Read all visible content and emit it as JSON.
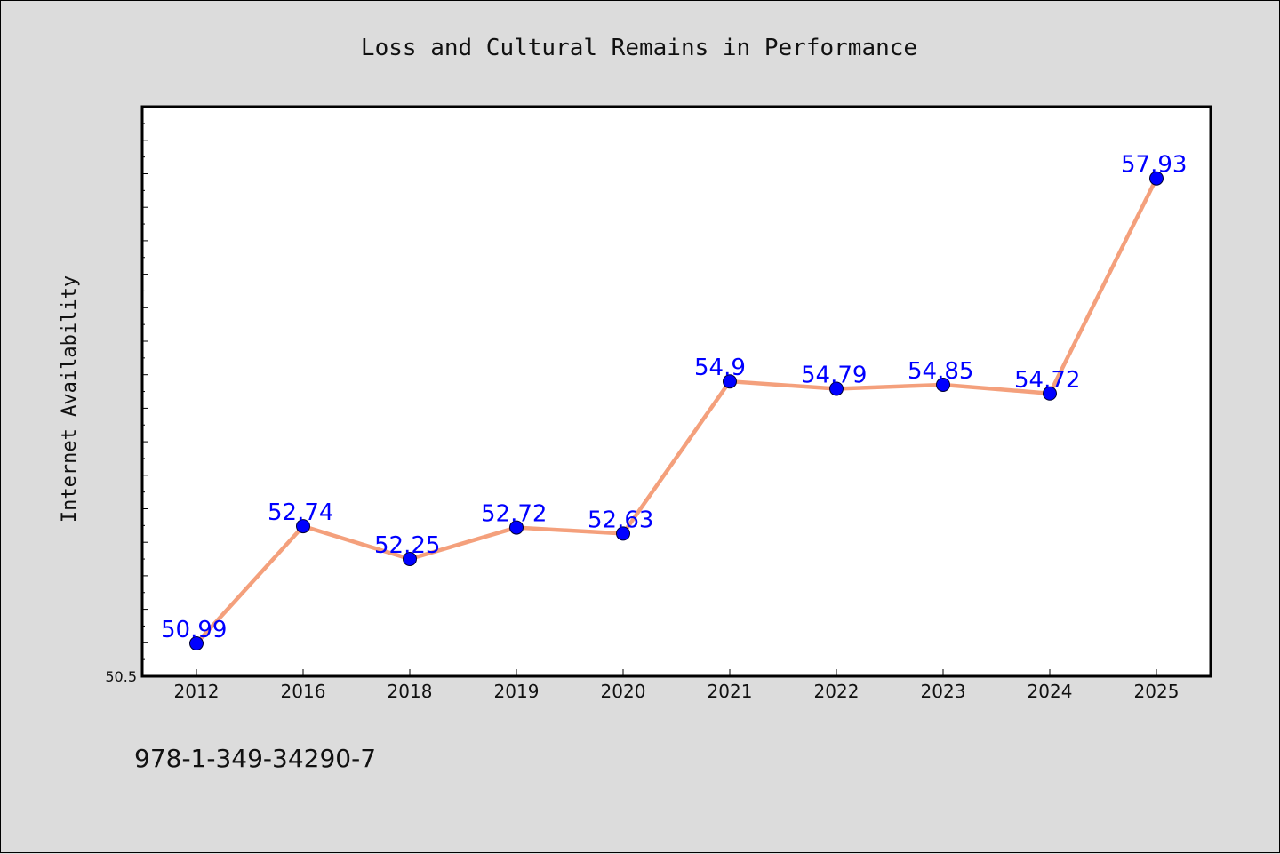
{
  "chart_data": {
    "type": "line",
    "title": "Loss and Cultural Remains in Performance",
    "xlabel": "",
    "ylabel": "Internet Availability",
    "categories": [
      "2012",
      "2016",
      "2018",
      "2019",
      "2020",
      "2021",
      "2022",
      "2023",
      "2024",
      "2025"
    ],
    "series": [
      {
        "values": [
          50.99,
          52.74,
          52.25,
          52.72,
          52.63,
          54.9,
          54.79,
          54.85,
          54.72,
          57.93
        ],
        "labels": [
          "50.99",
          "52.74",
          "52.25",
          "52.72",
          "52.63",
          "54.9",
          "54.79",
          "54.85",
          "54.72",
          "57.93"
        ],
        "line_color": "#f4a07c",
        "marker_color": "#0000ff",
        "label_color": "#0000ff"
      }
    ],
    "y_tick_labels": [
      "50.5"
    ],
    "ylim": [
      50.5,
      59.0
    ],
    "grid": false,
    "legend": "none"
  },
  "footer": {
    "isbn": "978-1-349-34290-7"
  },
  "colors": {
    "background": "#dcdcdc",
    "plot_background": "#ffffff"
  }
}
